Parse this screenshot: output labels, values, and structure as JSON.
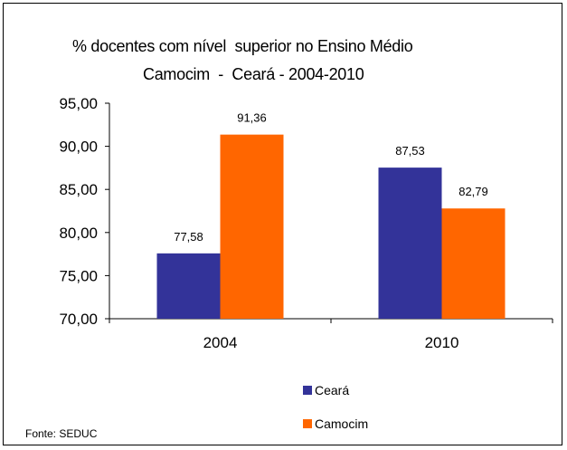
{
  "chart_data": {
    "type": "bar",
    "title": "% docentes com nível  superior no Ensino Médio",
    "subtitle": "Camocim  -  Ceará - 2004-2010",
    "categories": [
      "2004",
      "2010"
    ],
    "series": [
      {
        "name": "Ceará",
        "values": [
          77.58,
          87.53
        ],
        "labels": [
          "77,58",
          "87,53"
        ],
        "color": "#333399"
      },
      {
        "name": "Camocim",
        "values": [
          91.36,
          82.79
        ],
        "labels": [
          "91,36",
          "82,79"
        ],
        "color": "#FF6600"
      }
    ],
    "ylim": [
      70,
      95
    ],
    "yticks": [
      70,
      75,
      80,
      85,
      90,
      95
    ],
    "ytick_labels": [
      "70,00",
      "75,00",
      "80,00",
      "85,00",
      "90,00",
      "95,00"
    ],
    "grid": false,
    "legend_position": "bottom-center",
    "source": "Fonte: SEDUC"
  }
}
